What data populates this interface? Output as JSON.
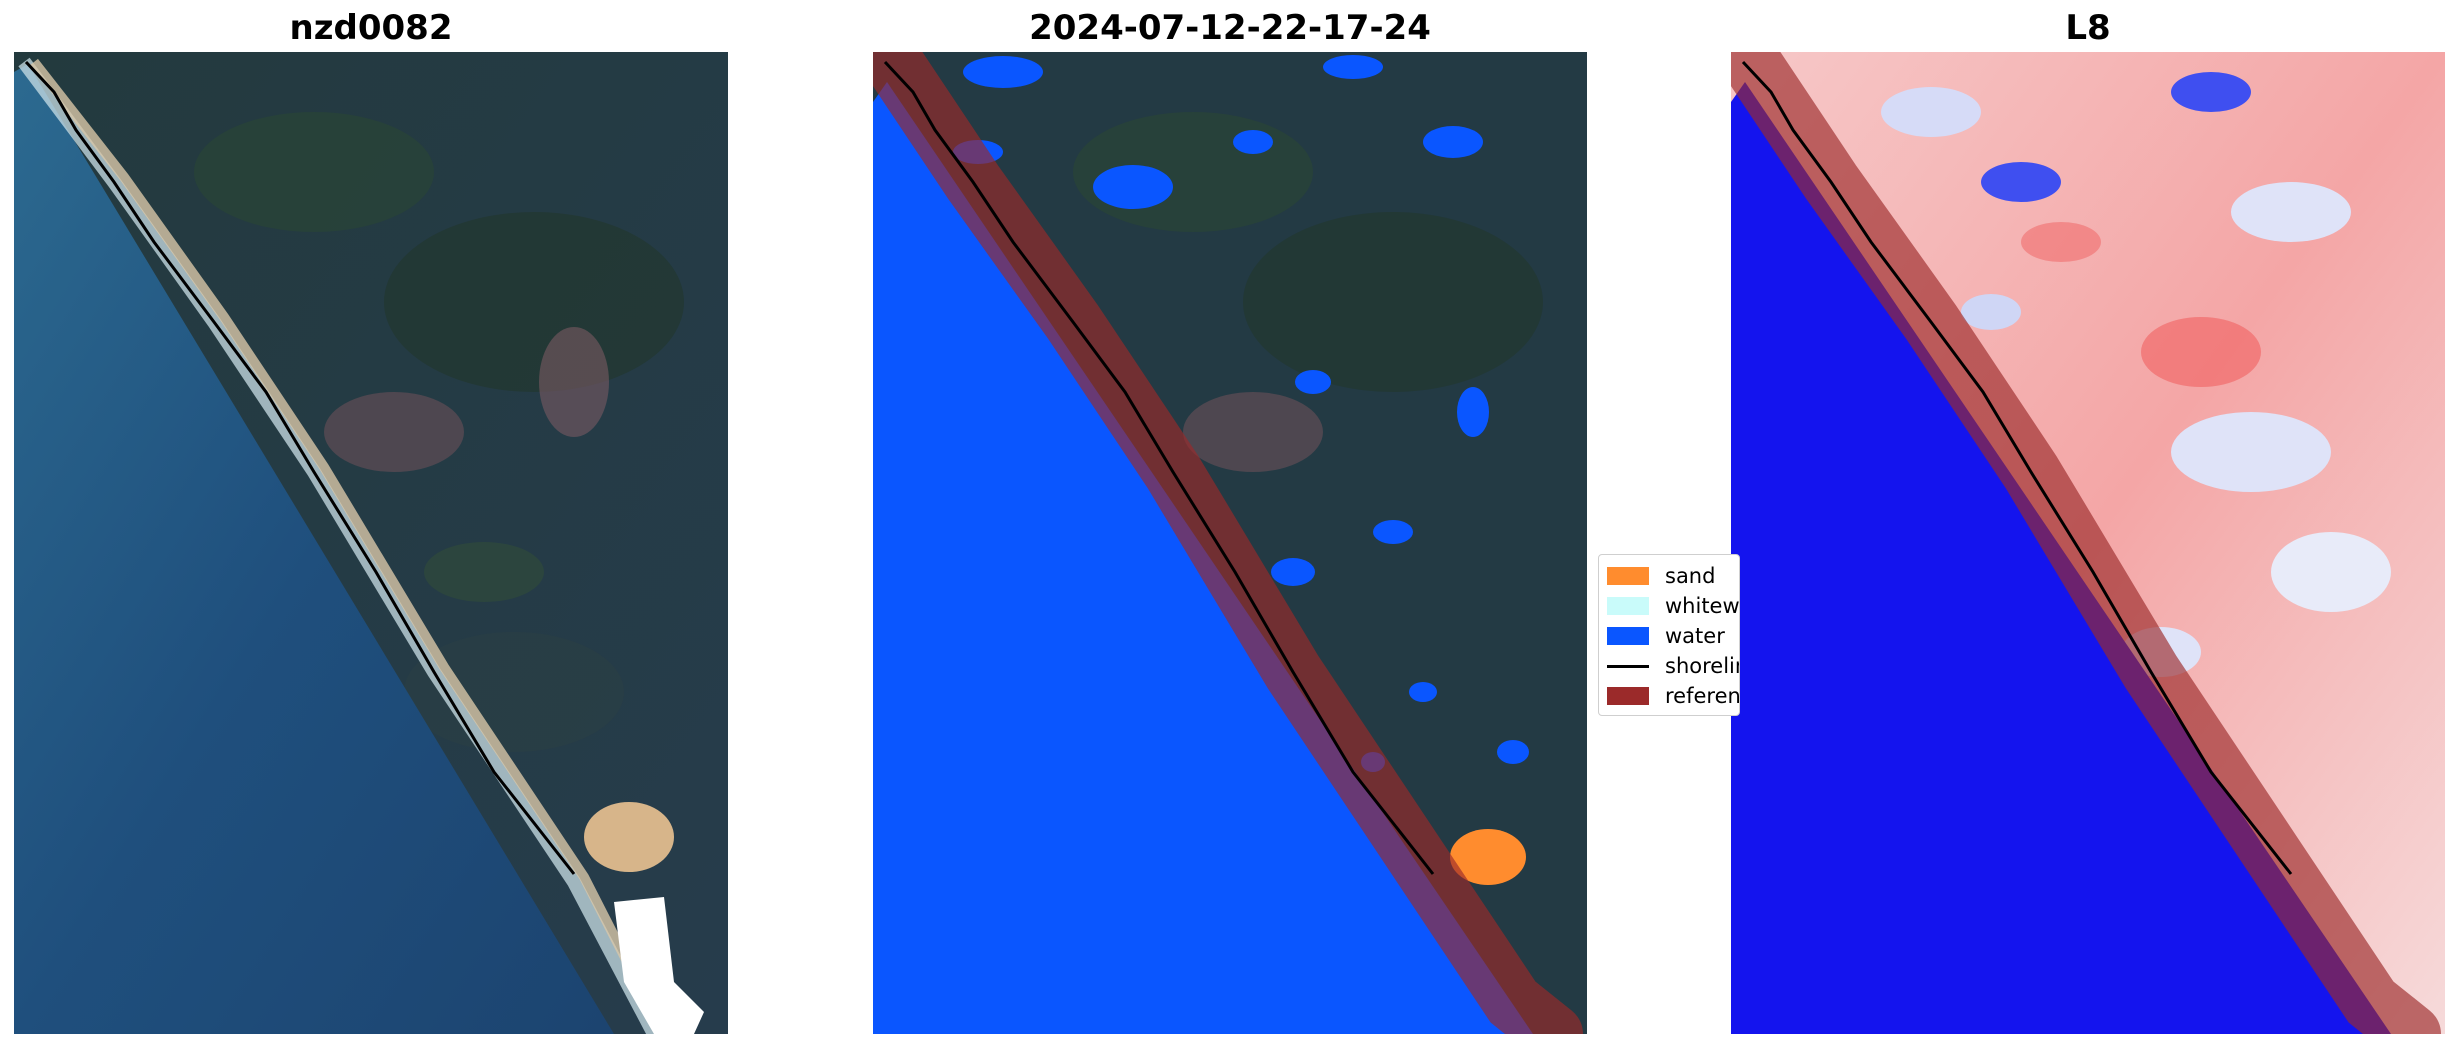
{
  "panels": [
    {
      "title": "nzd0082"
    },
    {
      "title": "2024-07-12-22-17-24"
    },
    {
      "title": "L8"
    }
  ],
  "legend": {
    "items": [
      {
        "label": "sand",
        "color": "#ff8c2e"
      },
      {
        "label": "whitewater",
        "color": "#c9fbfa"
      },
      {
        "label": "water",
        "color": "#0a56ff"
      },
      {
        "label": "shoreline",
        "color": "#000000"
      },
      {
        "label": "reference shoreline buffer",
        "color": "#9b2a2a"
      }
    ]
  },
  "colors": {
    "ocean": "#1d4a7a",
    "land": "#233a46",
    "water_class": "#0a56ff",
    "index_water": "#1414ee",
    "index_land": "#f4b8b8"
  }
}
